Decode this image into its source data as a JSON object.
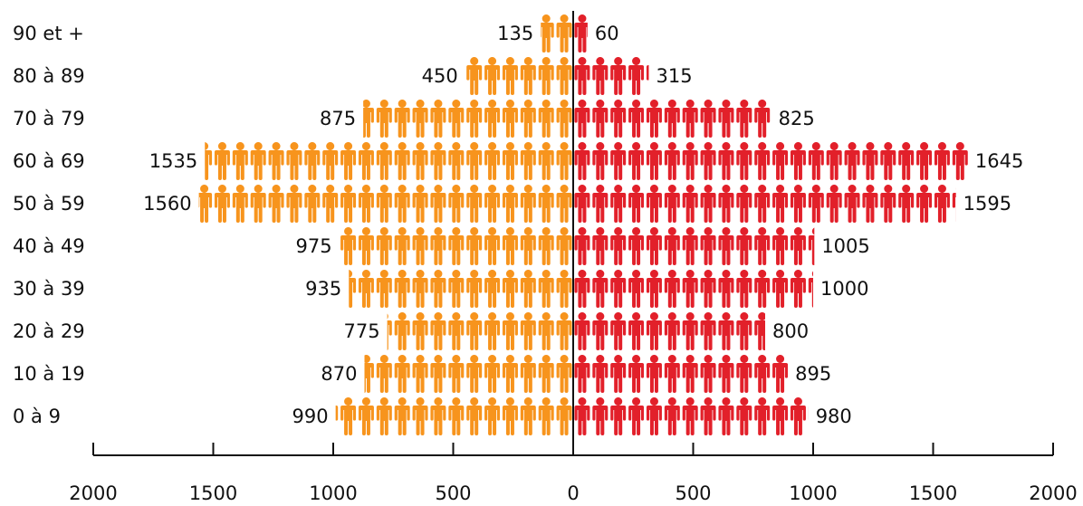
{
  "chart_data": {
    "type": "bar",
    "title": "",
    "xlabel": "",
    "ylabel": "",
    "categories": [
      "90 et +",
      "80 à 89",
      "70 à 79",
      "60 à 69",
      "50 à 59",
      "40 à 49",
      "30 à 39",
      "20 à 29",
      "10 à 19",
      "0 à 9"
    ],
    "series": [
      {
        "color": "#f7941d",
        "side": "left",
        "values": [
          135,
          450,
          875,
          1535,
          1560,
          975,
          935,
          775,
          870,
          990
        ]
      },
      {
        "color": "#e2202a",
        "side": "right",
        "values": [
          60,
          315,
          825,
          1645,
          1595,
          1005,
          1000,
          800,
          895,
          980
        ]
      }
    ],
    "xlim": [
      -2000,
      2000
    ],
    "x_ticks": [
      -2000,
      -1500,
      -1000,
      -500,
      0,
      500,
      1000,
      1500,
      2000
    ],
    "x_tick_labels": [
      "2000",
      "1500",
      "1000",
      "500",
      "0",
      "500",
      "1000",
      "1500",
      "2000"
    ],
    "pictogram_unit": 75,
    "grid": false,
    "legend": "none"
  }
}
